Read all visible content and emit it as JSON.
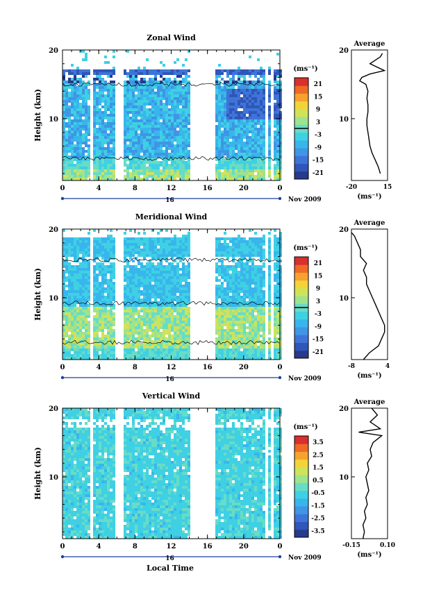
{
  "figure": {
    "xlabel": "Local Time",
    "date_label": "Nov 2009",
    "day_label": "16",
    "colors": {
      "scale": [
        "#283a8c",
        "#2f56b8",
        "#3e74d8",
        "#3f95e6",
        "#38b6ec",
        "#3fd0e4",
        "#68dcc6",
        "#9ee38e",
        "#cfe35a",
        "#f2d338",
        "#f7a22e",
        "#ee6a26",
        "#d8302c"
      ],
      "contour": "#000000",
      "axis_accent": "#1f3fa0"
    }
  },
  "chart_data": [
    {
      "type": "heatmap",
      "title": "Zonal Wind",
      "ylabel": "Height (km)",
      "x_ticks": [
        "0",
        "4",
        "8",
        "12",
        "16",
        "20",
        "0"
      ],
      "xlim": [
        0,
        24
      ],
      "y_ticks": [
        "20",
        "10"
      ],
      "ylim": [
        1,
        20
      ],
      "colorbar": {
        "unit": "(ms⁻¹)",
        "ticks": [
          "21",
          "15",
          "9",
          "3",
          "-3",
          "-9",
          "-15",
          "-21"
        ],
        "range": [
          -24,
          24
        ]
      },
      "profile": {
        "title": "Average",
        "unit": "(ms⁻¹)",
        "x_ticks": [
          "-20",
          "15"
        ],
        "xlim": [
          -20,
          15
        ],
        "y_ticks": [
          "20",
          "10"
        ],
        "heights": [
          2,
          3,
          4,
          5,
          6,
          7,
          8,
          9,
          10,
          11,
          12,
          13,
          14,
          15,
          15.5,
          16,
          16.5,
          17,
          18,
          19,
          19.5
        ],
        "values": [
          8,
          6,
          3,
          0,
          -2,
          -3,
          -4,
          -5,
          -5,
          -4,
          -4,
          -5,
          -4,
          -6,
          -12,
          -10,
          -2,
          12,
          -2,
          8,
          10
        ]
      }
    },
    {
      "type": "heatmap",
      "title": "Meridional Wind",
      "ylabel": "Height (km)",
      "x_ticks": [
        "0",
        "4",
        "8",
        "12",
        "16",
        "20",
        "0"
      ],
      "xlim": [
        0,
        24
      ],
      "y_ticks": [
        "20",
        "10"
      ],
      "ylim": [
        1,
        20
      ],
      "colorbar": {
        "unit": "(ms⁻¹)",
        "ticks": [
          "21",
          "15",
          "9",
          "3",
          "-3",
          "-9",
          "-15",
          "-21"
        ],
        "range": [
          -24,
          24
        ]
      },
      "profile": {
        "title": "Average",
        "unit": "(ms⁻¹)",
        "x_ticks": [
          "-8",
          "4"
        ],
        "xlim": [
          -8,
          4
        ],
        "y_ticks": [
          "20",
          "10"
        ],
        "heights": [
          1,
          2,
          3,
          4,
          5,
          6,
          7,
          8,
          9,
          10,
          11,
          12,
          13,
          14,
          15,
          16,
          17,
          18,
          19,
          19.5
        ],
        "values": [
          -4,
          -2,
          1,
          2,
          3,
          3,
          2,
          1,
          0,
          -1,
          -2,
          -3,
          -3,
          -4,
          -3,
          -5,
          -5,
          -6,
          -7,
          -8
        ]
      }
    },
    {
      "type": "heatmap",
      "title": "Vertical Wind",
      "ylabel": "Height (km)",
      "x_ticks": [
        "0",
        "4",
        "8",
        "12",
        "16",
        "20",
        "0"
      ],
      "xlim": [
        0,
        24
      ],
      "y_ticks": [
        "20",
        "10"
      ],
      "ylim": [
        1,
        20
      ],
      "colorbar": {
        "unit": "(ms⁻¹)",
        "ticks": [
          "3.5",
          "2.5",
          "1.5",
          "0.5",
          "-0.5",
          "-1.5",
          "-2.5",
          "-3.5"
        ],
        "range": [
          -4,
          4
        ]
      },
      "profile": {
        "title": "Average",
        "unit": "(ms⁻¹)",
        "x_ticks": [
          "-0.15",
          "0.10"
        ],
        "xlim": [
          -0.15,
          0.1
        ],
        "y_ticks": [
          "20",
          "10"
        ],
        "heights": [
          1,
          2,
          3,
          4,
          5,
          6,
          7,
          8,
          9,
          10,
          11,
          12,
          13,
          14,
          15,
          16,
          16.5,
          17,
          18,
          19,
          20
        ],
        "values": [
          -0.07,
          -0.06,
          -0.07,
          -0.05,
          -0.06,
          -0.04,
          -0.05,
          -0.03,
          -0.04,
          -0.05,
          -0.03,
          -0.04,
          -0.01,
          -0.02,
          0.0,
          0.06,
          -0.1,
          0.05,
          -0.02,
          0.03,
          -0.01
        ]
      }
    }
  ]
}
